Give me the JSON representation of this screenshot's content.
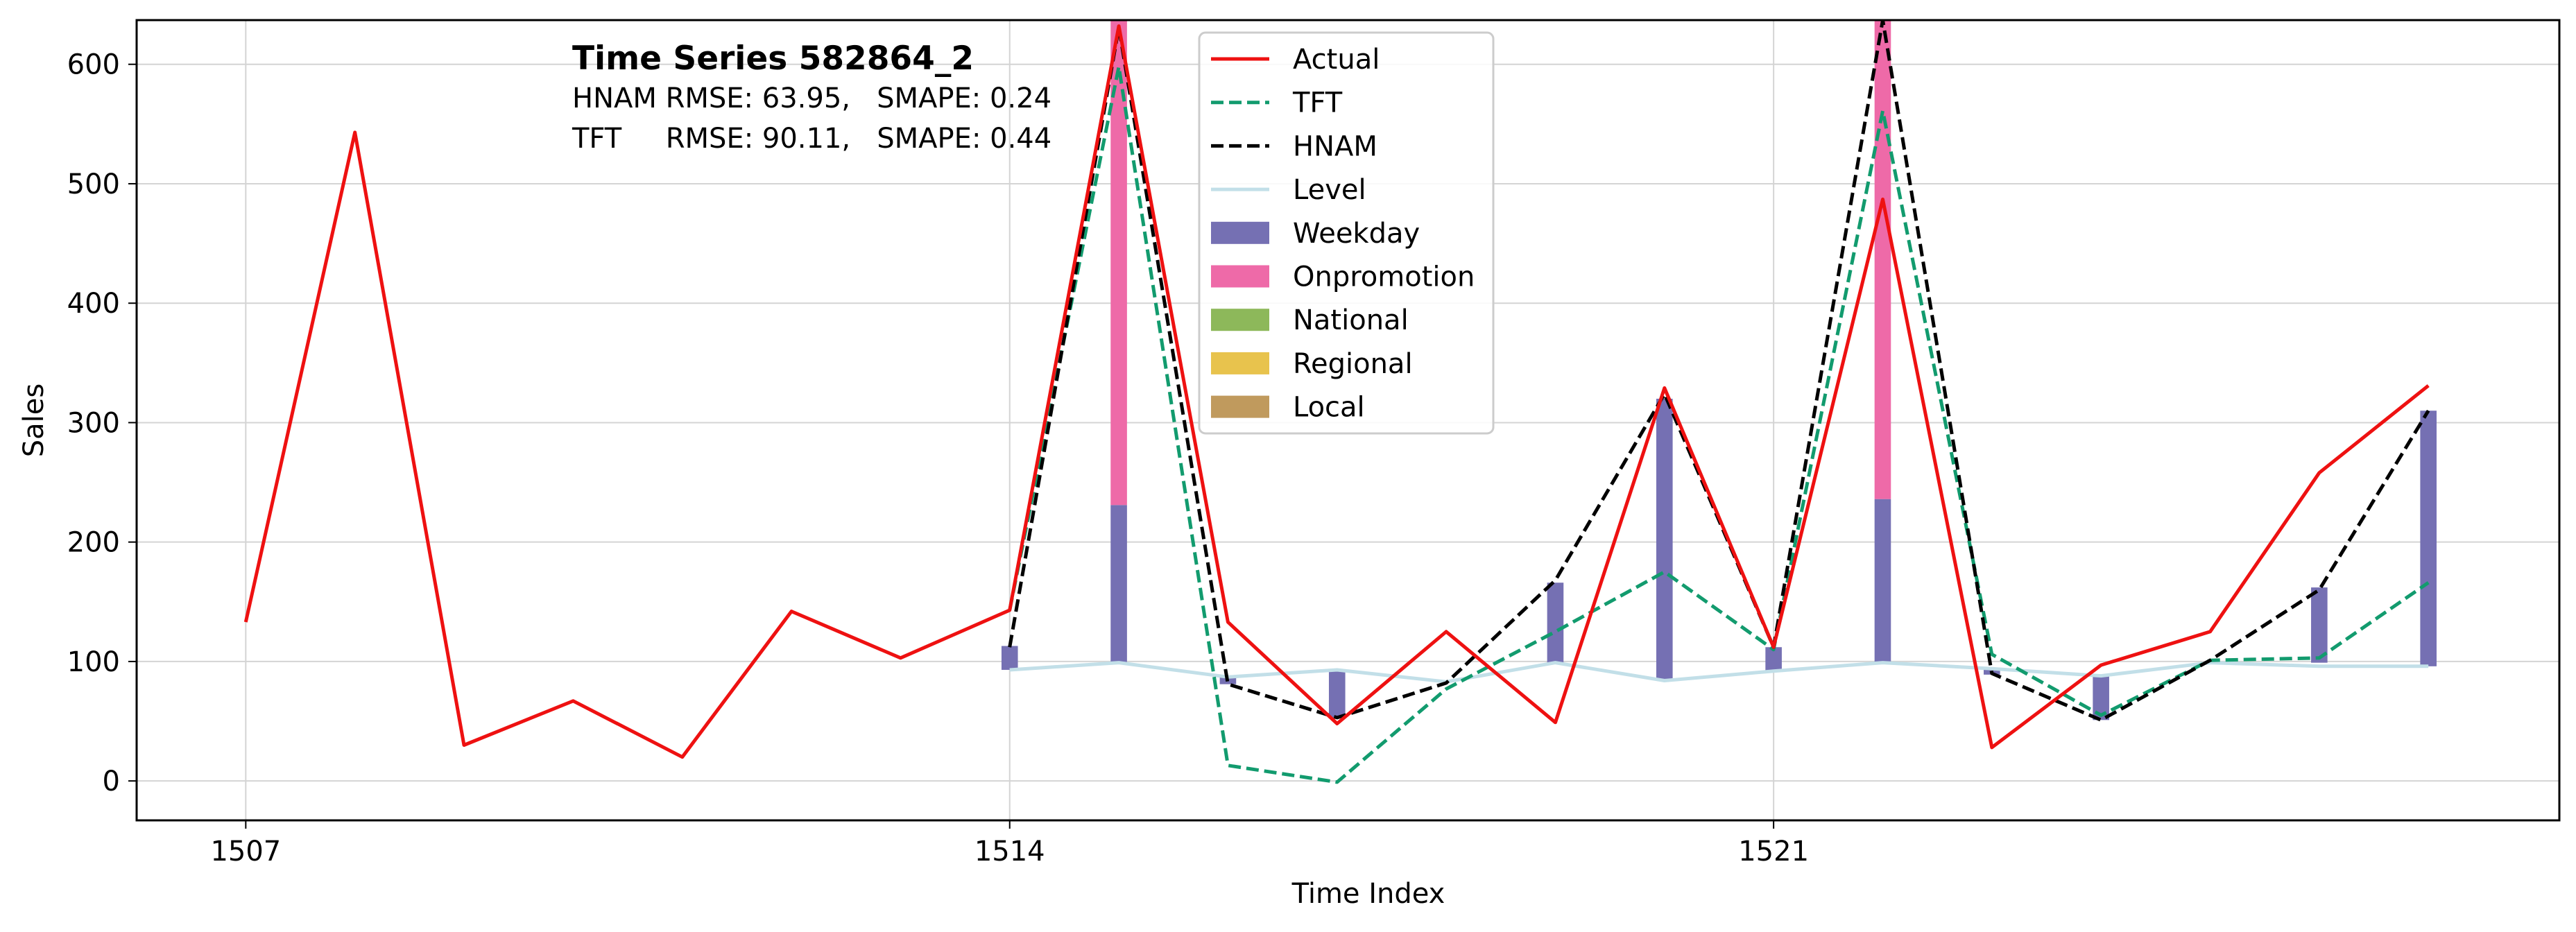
{
  "chart_data": {
    "type": "line",
    "title": "Time Series 582864_2",
    "metrics": [
      {
        "model": "HNAM",
        "text": "HNAM RMSE: 63.95,   SMAPE: 0.24"
      },
      {
        "model": "TFT",
        "text": "TFT     RMSE: 90.11,   SMAPE: 0.44"
      }
    ],
    "xlabel": "Time Index",
    "ylabel": "Sales",
    "xlim": [
      1506,
      1528.2
    ],
    "ylim": [
      -33,
      637
    ],
    "xticks": [
      {
        "value": 1507,
        "label": "1507"
      },
      {
        "value": 1514,
        "label": "1514"
      },
      {
        "value": 1521,
        "label": "1521"
      }
    ],
    "yticks": [
      {
        "value": 0,
        "label": "0"
      },
      {
        "value": 100,
        "label": "100"
      },
      {
        "value": 200,
        "label": "200"
      },
      {
        "value": 300,
        "label": "300"
      },
      {
        "value": 400,
        "label": "400"
      },
      {
        "value": 500,
        "label": "500"
      },
      {
        "value": 600,
        "label": "600"
      }
    ],
    "grid": true,
    "legend": {
      "placement": "top-center",
      "entries": [
        {
          "name": "Actual",
          "kind": "line",
          "color": "#ee1111",
          "dash": "solid"
        },
        {
          "name": "TFT",
          "kind": "line",
          "color": "#129b6e",
          "dash": "dashed"
        },
        {
          "name": "HNAM",
          "kind": "line",
          "color": "#000000",
          "dash": "dashed"
        },
        {
          "name": "Level",
          "kind": "line",
          "color": "#c2dfe8",
          "dash": "solid"
        },
        {
          "name": "Weekday",
          "kind": "patch",
          "color": "#7570b3"
        },
        {
          "name": "Onpromotion",
          "kind": "patch",
          "color": "#ee6aa8"
        },
        {
          "name": "National",
          "kind": "patch",
          "color": "#8db85a"
        },
        {
          "name": "Regional",
          "kind": "patch",
          "color": "#e8c34d"
        },
        {
          "name": "Local",
          "kind": "patch",
          "color": "#c09a5d"
        }
      ]
    },
    "series": [
      {
        "name": "Actual",
        "color": "#ee1111",
        "dash": "solid",
        "x": [
          1507,
          1508,
          1509,
          1510,
          1511,
          1512,
          1513,
          1514,
          1515,
          1516,
          1517,
          1518,
          1519,
          1520,
          1521,
          1522,
          1523,
          1524,
          1525,
          1526,
          1527
        ],
        "y": [
          133,
          543,
          30,
          67,
          20,
          142,
          103,
          143,
          632,
          133,
          48,
          125,
          49,
          329,
          112,
          487,
          28,
          97,
          125,
          258,
          331
        ]
      },
      {
        "name": "TFT",
        "color": "#129b6e",
        "dash": "dashed",
        "x": [
          1514,
          1515,
          1516,
          1517,
          1518,
          1519,
          1520,
          1521,
          1522,
          1523,
          1524,
          1525,
          1526,
          1527
        ],
        "y": [
          143,
          598,
          13,
          -1,
          77,
          125,
          175,
          110,
          561,
          106,
          55,
          101,
          103,
          166
        ]
      },
      {
        "name": "HNAM",
        "color": "#000000",
        "dash": "dashed",
        "x": [
          1514,
          1515,
          1516,
          1517,
          1518,
          1519,
          1520,
          1521,
          1522,
          1523,
          1524,
          1525,
          1526,
          1527
        ],
        "y": [
          112,
          631,
          81,
          53,
          82,
          168,
          324,
          112,
          637,
          90,
          51,
          101,
          160,
          310
        ]
      },
      {
        "name": "Level",
        "color": "#c2dfe8",
        "dash": "solid",
        "x": [
          1514,
          1515,
          1516,
          1517,
          1518,
          1519,
          1520,
          1521,
          1522,
          1523,
          1524,
          1525,
          1526,
          1527
        ],
        "y": [
          93,
          99,
          87,
          93,
          83,
          99,
          84,
          92,
          99,
          94,
          88,
          99,
          96,
          96
        ]
      }
    ],
    "components": {
      "width": 0.15,
      "bars": [
        {
          "x": 1514,
          "weekday": [
            93,
            113
          ],
          "onpromotion": null
        },
        {
          "x": 1515,
          "weekday": [
            99,
            231
          ],
          "onpromotion": [
            231,
            637
          ]
        },
        {
          "x": 1516,
          "weekday": [
            81,
            87
          ],
          "onpromotion": null
        },
        {
          "x": 1517,
          "weekday": [
            53,
            93
          ],
          "onpromotion": null
        },
        {
          "x": 1519,
          "weekday": [
            99,
            166
          ],
          "onpromotion": null
        },
        {
          "x": 1520,
          "weekday": [
            84,
            320
          ],
          "onpromotion": null
        },
        {
          "x": 1521,
          "weekday": [
            92,
            112
          ],
          "onpromotion": null
        },
        {
          "x": 1522,
          "weekday": [
            99,
            236
          ],
          "onpromotion": [
            236,
            637
          ]
        },
        {
          "x": 1523,
          "weekday": [
            89,
            94
          ],
          "onpromotion": null
        },
        {
          "x": 1524,
          "weekday": [
            51,
            88
          ],
          "onpromotion": null
        },
        {
          "x": 1526,
          "weekday": [
            99,
            162
          ],
          "onpromotion": null
        },
        {
          "x": 1527,
          "weekday": [
            96,
            310
          ],
          "onpromotion": null
        }
      ]
    }
  }
}
